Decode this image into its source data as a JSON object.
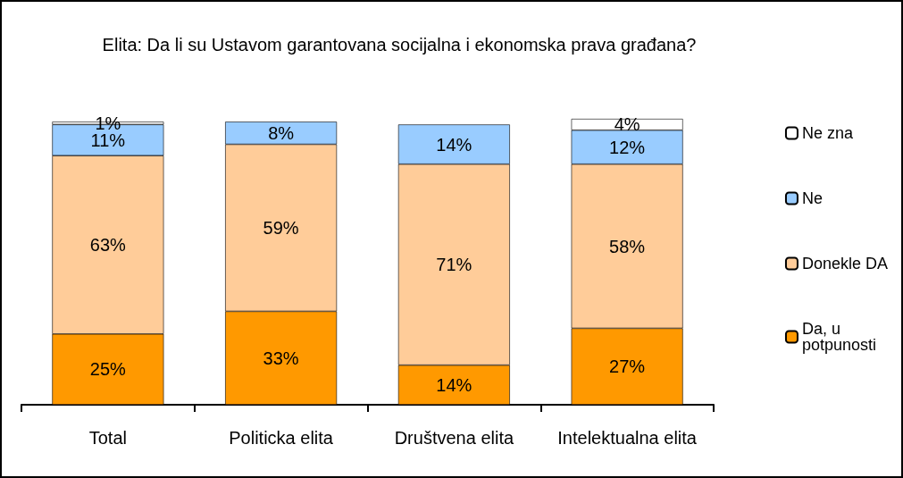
{
  "chart_data": {
    "type": "bar",
    "title": "Elita: Da li su Ustavom garantovana socijalna i ekonomska prava građana?",
    "categories": [
      "Total",
      "Politicka elita",
      "Društvena elita",
      "Intelektualna elita"
    ],
    "stacked": true,
    "legend": "right",
    "series": [
      {
        "name": "Da, u potpunosti",
        "color": "#ff9900",
        "values": [
          25,
          33,
          14,
          27
        ],
        "value_labels": [
          "25%",
          "33%",
          "14%",
          "27%"
        ]
      },
      {
        "name": "Donekle DA",
        "color": "#ffcc99",
        "values": [
          63,
          59,
          71,
          58
        ],
        "value_labels": [
          "63%",
          "59%",
          "71%",
          "58%"
        ]
      },
      {
        "name": "Ne",
        "color": "#99ccff",
        "values": [
          11,
          8,
          14,
          12
        ],
        "value_labels": [
          "11%",
          "8%",
          "14%",
          "12%"
        ]
      },
      {
        "name": "Ne zna",
        "color": "#ffffff",
        "values": [
          1,
          null,
          null,
          4
        ],
        "value_labels": [
          "1%",
          null,
          null,
          "4%"
        ]
      }
    ]
  }
}
